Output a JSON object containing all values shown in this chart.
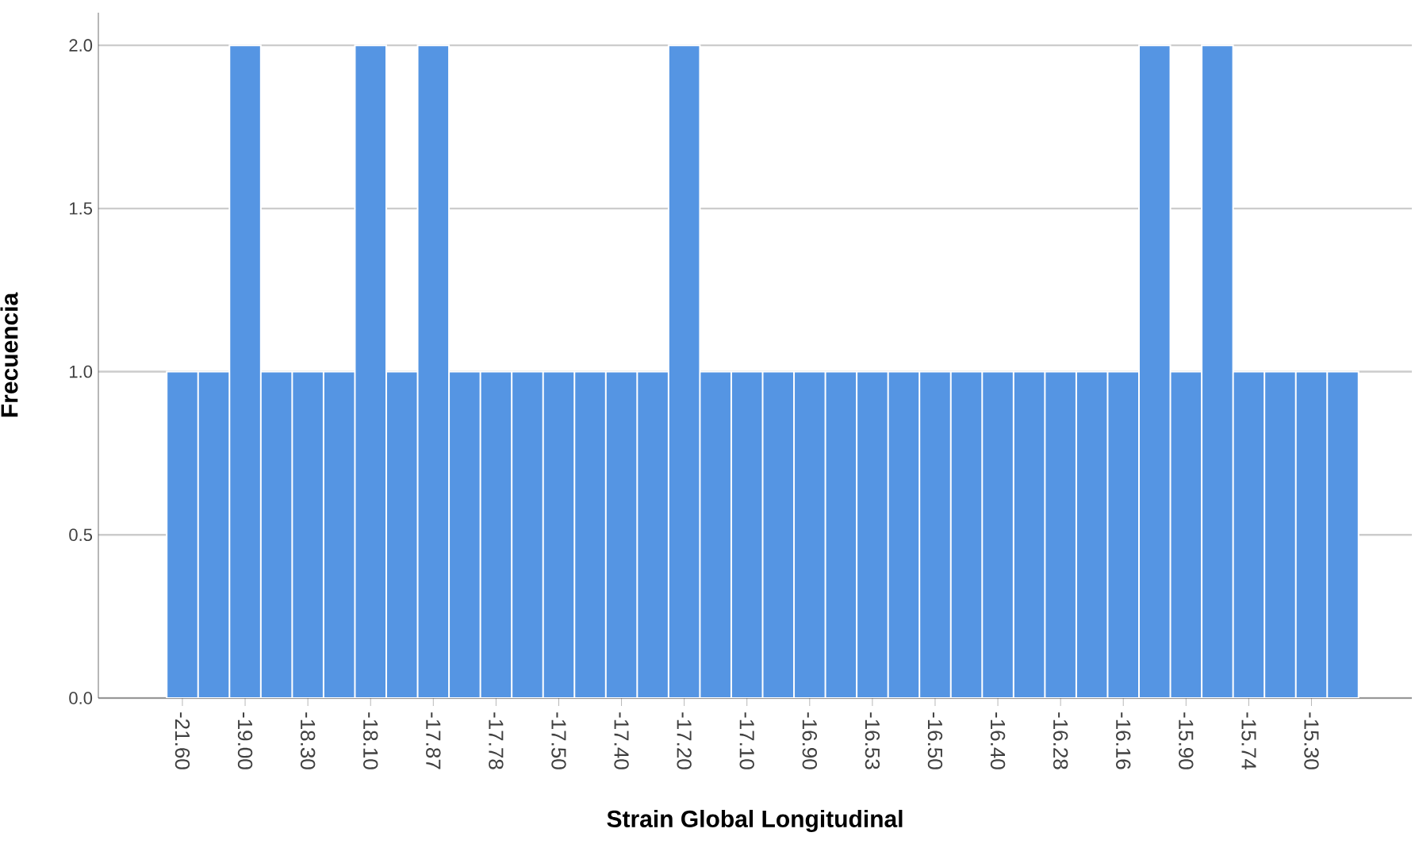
{
  "chart_data": {
    "type": "bar",
    "xlabel": "Strain Global Longitudinal",
    "ylabel": "Frecuencia",
    "categories": [
      "-21.60",
      null,
      "-19.00",
      null,
      "-18.30",
      null,
      "-18.10",
      null,
      "-17.87",
      null,
      "-17.78",
      null,
      "-17.50",
      null,
      "-17.40",
      null,
      "-17.20",
      null,
      "-17.10",
      null,
      "-16.90",
      null,
      "-16.53",
      null,
      "-16.50",
      null,
      "-16.40",
      null,
      "-16.28",
      null,
      "-16.16",
      null,
      "-15.90",
      null,
      "-15.74",
      null,
      "-15.30",
      null
    ],
    "values": [
      1,
      1,
      2,
      1,
      1,
      1,
      2,
      1,
      2,
      1,
      1,
      1,
      1,
      1,
      1,
      1,
      2,
      1,
      1,
      1,
      1,
      1,
      1,
      1,
      1,
      1,
      1,
      1,
      1,
      1,
      1,
      2,
      1,
      2,
      1,
      1,
      1,
      1
    ],
    "color": "#5595e3",
    "ylim": [
      0,
      2.1
    ],
    "yticks": [
      {
        "value": 0,
        "label": "0.0"
      },
      {
        "value": 0.5,
        "label": "0.5"
      },
      {
        "value": 1,
        "label": "1.0"
      },
      {
        "value": 1.5,
        "label": "1.5"
      },
      {
        "value": 2,
        "label": "2.0"
      }
    ],
    "grid": "y"
  }
}
